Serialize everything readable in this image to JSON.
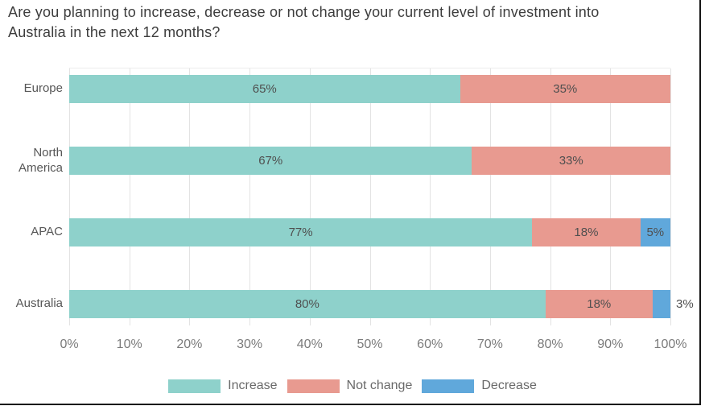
{
  "chart_data": {
    "type": "bar",
    "orientation": "horizontal-stacked",
    "title": "Are you planning to increase, decrease or not change your current level of investment into Australia in the next 12 months?",
    "categories": [
      "Europe",
      "North America",
      "APAC",
      "Australia"
    ],
    "series": [
      {
        "name": "Increase",
        "color": "#8ed1cb",
        "values": [
          65,
          67,
          77,
          80
        ]
      },
      {
        "name": "Not change",
        "color": "#e89a90",
        "values": [
          35,
          33,
          18,
          18
        ]
      },
      {
        "name": "Decrease",
        "color": "#60a8db",
        "values": [
          0,
          0,
          5,
          3
        ]
      }
    ],
    "data_label_format": "{v}%",
    "outside_labels": [
      {
        "category": "Australia",
        "series": "Decrease"
      }
    ],
    "xlim": [
      0,
      100
    ],
    "x_ticks": [
      "0%",
      "10%",
      "20%",
      "30%",
      "40%",
      "50%",
      "60%",
      "70%",
      "80%",
      "90%",
      "100%"
    ],
    "grid": "vertical",
    "legend": {
      "position": "bottom",
      "entries": [
        "Increase",
        "Not change",
        "Decrease"
      ]
    },
    "colors": {
      "title_text": "#3d3d3d",
      "category_text": "#575757",
      "data_label_text": "#4f4f4f",
      "tick_text": "#7b7b7b",
      "legend_text": "#696969",
      "gridline": "#e3e3e3",
      "window_border": "#161616"
    }
  }
}
